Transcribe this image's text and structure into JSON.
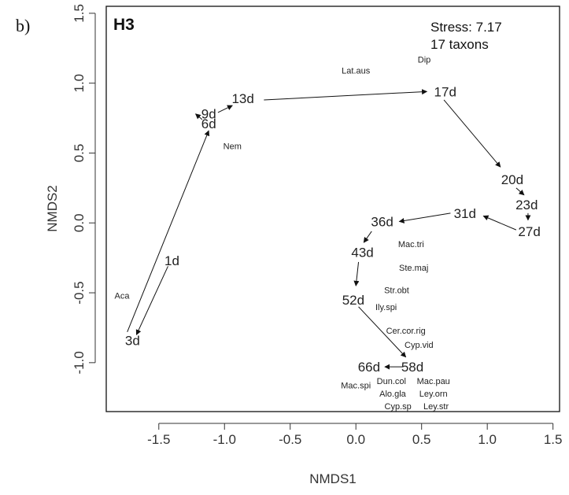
{
  "chart_data": {
    "type": "scatter",
    "panel_tag": "b)",
    "title": "H3",
    "annotations": [
      "Stress: 7.17",
      "17 taxons"
    ],
    "xlabel": "NMDS1",
    "ylabel": "NMDS2",
    "xlim": [
      -1.9,
      1.55
    ],
    "ylim": [
      -1.35,
      1.55
    ],
    "x_ticks": [
      -1.5,
      -1.0,
      -0.5,
      0.0,
      0.5,
      1.0,
      1.5
    ],
    "x_tick_labels": [
      "-1.5",
      "-1.0",
      "-0.5",
      "0.0",
      "0.5",
      "1.0",
      "1.5"
    ],
    "y_ticks": [
      -1.0,
      -0.5,
      0.0,
      0.5,
      1.0,
      1.5
    ],
    "y_tick_labels": [
      "-1.0",
      "-0.5",
      "0.0",
      "0.5",
      "1.0",
      "1.5"
    ],
    "grid": false,
    "legend": "none",
    "samples": [
      {
        "label": "1d",
        "x": -1.4,
        "y": -0.27
      },
      {
        "label": "3d",
        "x": -1.7,
        "y": -0.84
      },
      {
        "label": "6d",
        "x": -1.12,
        "y": 0.71
      },
      {
        "label": "9d",
        "x": -1.12,
        "y": 0.78
      },
      {
        "label": "13d",
        "x": -0.86,
        "y": 0.89
      },
      {
        "label": "17d",
        "x": 0.68,
        "y": 0.94
      },
      {
        "label": "20d",
        "x": 1.19,
        "y": 0.31
      },
      {
        "label": "23d",
        "x": 1.3,
        "y": 0.13
      },
      {
        "label": "27d",
        "x": 1.32,
        "y": -0.06
      },
      {
        "label": "31d",
        "x": 0.83,
        "y": 0.07
      },
      {
        "label": "36d",
        "x": 0.2,
        "y": 0.01
      },
      {
        "label": "43d",
        "x": 0.05,
        "y": -0.21
      },
      {
        "label": "52d",
        "x": -0.02,
        "y": -0.55
      },
      {
        "label": "58d",
        "x": 0.43,
        "y": -1.03
      },
      {
        "label": "66d",
        "x": 0.1,
        "y": -1.03
      }
    ],
    "trajectory": [
      {
        "from": "1d",
        "to": "3d",
        "tail": [
          -1.43,
          -0.31
        ],
        "head": [
          -1.67,
          -0.8
        ]
      },
      {
        "from": "3d",
        "to": "6d",
        "tail": [
          -1.74,
          -0.78
        ],
        "head": [
          -1.12,
          0.66
        ]
      },
      {
        "from": "6d",
        "to": "9d",
        "tail": [
          -1.17,
          0.74
        ],
        "head": [
          -1.22,
          0.78
        ]
      },
      {
        "from": "9d",
        "to": "13d",
        "tail": [
          -1.05,
          0.79
        ],
        "head": [
          -0.94,
          0.84
        ]
      },
      {
        "from": "13d",
        "to": "17d",
        "tail": [
          -0.7,
          0.88
        ],
        "head": [
          0.54,
          0.94
        ]
      },
      {
        "from": "17d",
        "to": "20d",
        "tail": [
          0.67,
          0.88
        ],
        "head": [
          1.1,
          0.4
        ]
      },
      {
        "from": "20d",
        "to": "23d",
        "tail": [
          1.22,
          0.25
        ],
        "head": [
          1.28,
          0.2
        ]
      },
      {
        "from": "23d",
        "to": "27d",
        "tail": [
          1.31,
          0.07
        ],
        "head": [
          1.31,
          0.02
        ]
      },
      {
        "from": "27d",
        "to": "31d",
        "tail": [
          1.22,
          -0.05
        ],
        "head": [
          0.97,
          0.05
        ]
      },
      {
        "from": "31d",
        "to": "36d",
        "tail": [
          0.72,
          0.07
        ],
        "head": [
          0.33,
          0.01
        ]
      },
      {
        "from": "36d",
        "to": "43d",
        "tail": [
          0.12,
          -0.06
        ],
        "head": [
          0.06,
          -0.14
        ]
      },
      {
        "from": "43d",
        "to": "52d",
        "tail": [
          0.02,
          -0.28
        ],
        "head": [
          0.0,
          -0.45
        ]
      },
      {
        "from": "52d",
        "to": "58d",
        "tail": [
          0.02,
          -0.6
        ],
        "head": [
          0.38,
          -0.96
        ]
      },
      {
        "from": "58d",
        "to": "66d",
        "tail": [
          0.36,
          -1.03
        ],
        "head": [
          0.22,
          -1.03
        ]
      }
    ],
    "taxa": [
      {
        "label": "Lat.aus",
        "x": 0.0,
        "y": 1.09
      },
      {
        "label": "Dip",
        "x": 0.52,
        "y": 1.17
      },
      {
        "label": "Nem",
        "x": -0.94,
        "y": 0.55
      },
      {
        "label": "Aca",
        "x": -1.78,
        "y": -0.52
      },
      {
        "label": "Mac.tri",
        "x": 0.42,
        "y": -0.15
      },
      {
        "label": "Ste.maj",
        "x": 0.44,
        "y": -0.32
      },
      {
        "label": "Str.obt",
        "x": 0.31,
        "y": -0.48
      },
      {
        "label": "Ily.spi",
        "x": 0.23,
        "y": -0.6
      },
      {
        "label": "Cer.cor.rig",
        "x": 0.38,
        "y": -0.77
      },
      {
        "label": "Cyp.vid",
        "x": 0.48,
        "y": -0.87
      },
      {
        "label": "Dun.col",
        "x": 0.27,
        "y": -1.13
      },
      {
        "label": "Mac.pau",
        "x": 0.59,
        "y": -1.13
      },
      {
        "label": "Mac.spi",
        "x": 0.0,
        "y": -1.16
      },
      {
        "label": "Alo.gla",
        "x": 0.28,
        "y": -1.22
      },
      {
        "label": "Ley.orn",
        "x": 0.59,
        "y": -1.22
      },
      {
        "label": "Cyp.sp",
        "x": 0.32,
        "y": -1.31
      },
      {
        "label": "Ley.str",
        "x": 0.61,
        "y": -1.31
      }
    ]
  }
}
